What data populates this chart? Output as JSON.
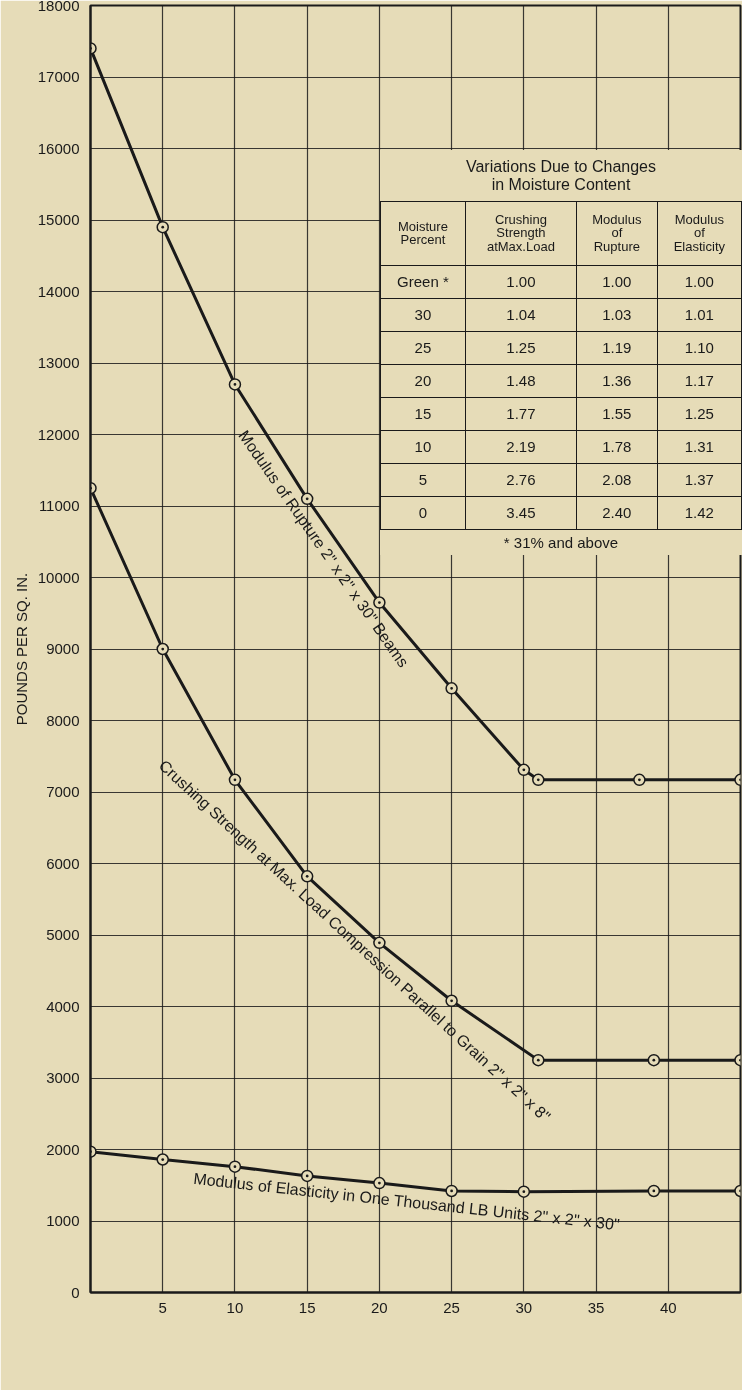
{
  "chart_data": {
    "type": "line",
    "ylabel": "POUNDS PER SQ. IN.",
    "xlim": [
      0,
      45
    ],
    "ylim": [
      0,
      18000
    ],
    "xticks": [
      {
        "value": 0,
        "label": null
      },
      5,
      10,
      15,
      20,
      25,
      30,
      35,
      40,
      {
        "value": 45,
        "label": null
      }
    ],
    "yticks": [
      0,
      1000,
      2000,
      3000,
      4000,
      5000,
      6000,
      7000,
      8000,
      9000,
      10000,
      11000,
      12000,
      13000,
      14000,
      15000,
      16000,
      17000,
      18000
    ],
    "grid": true,
    "marker": "circle",
    "line_style": "solid",
    "series": [
      {
        "color": "#1a1a1a",
        "x": [
          0,
          5,
          10,
          15,
          20,
          25,
          30,
          31,
          38,
          45
        ],
        "values": [
          17400,
          14900,
          12700,
          11100,
          9650,
          8450,
          7310,
          7170,
          7170,
          7170
        ]
      },
      {
        "color": "#1a1a1a",
        "x": [
          0,
          5,
          10,
          15,
          20,
          25,
          31,
          39,
          45
        ],
        "values": [
          11250,
          9000,
          7170,
          5820,
          4890,
          4080,
          3250,
          3250,
          3250
        ]
      },
      {
        "color": "#1a1a1a",
        "x": [
          0,
          5,
          10,
          15,
          20,
          25,
          30,
          39,
          45
        ],
        "values": [
          1970,
          1860,
          1760,
          1630,
          1530,
          1420,
          1410,
          1420,
          1420
        ]
      }
    ],
    "annotations": [
      {
        "text": "Modulus of Rupture 2\" x 2\" x 30\" Beams",
        "x": 17,
        "y": 10520
      },
      {
        "text": "Crushing Strength at Max. Load Compression Parallel to Grain 2\" x 2\" x 8\"",
        "x": 19,
        "y": 5070
      },
      {
        "text": "Modulus of Elasticity in One Thousand LB Units 2\" x 2\" x 30\"",
        "x": 22,
        "y": 1480
      },
      "Variations Due to Changes\nin Moisture Content",
      "Moisture\nPercent",
      "Crushing\nStrength\natMax.Load",
      "Modulus\nof\nRupture",
      "Modulus\nof\nElasticity",
      "Green *",
      "1.00",
      "1.00",
      "1.00",
      "30",
      "1.04",
      "1.03",
      "1.01",
      "25",
      "1.25",
      "1.19",
      "1.10",
      "20",
      "1.48",
      "1.36",
      "1.17",
      "15",
      "1.77",
      "1.55",
      "1.25",
      "10",
      "2.19",
      "1.78",
      "1.31",
      "5",
      "2.76",
      "2.08",
      "1.37",
      "0",
      "3.45",
      "2.40",
      "1.42",
      "* 31% and above"
    ]
  }
}
